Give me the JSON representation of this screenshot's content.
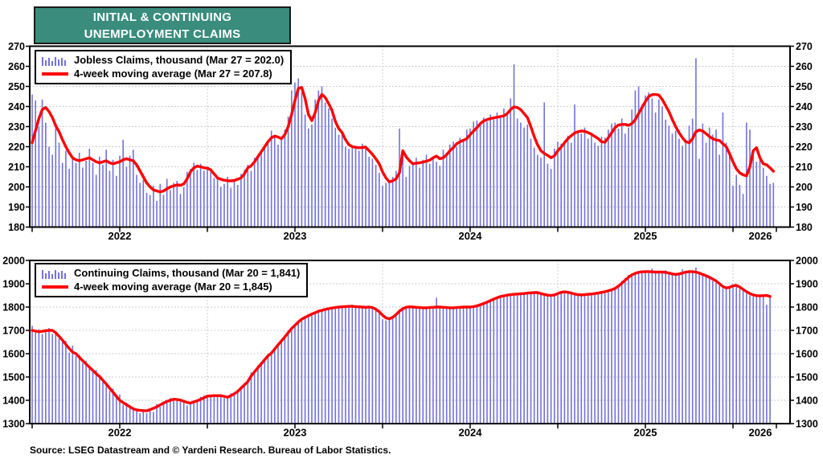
{
  "title": {
    "line1": "INITIAL & CONTINUING",
    "line2": "UNEMPLOYMENT CLAIMS"
  },
  "source_note": "Source: LSEG Datastream and © Yardeni Research. Bureau of Labor Statistics.",
  "colors": {
    "bars": "#7272D9",
    "line": "#FF0000",
    "title_bg": "#3A8C7D",
    "frame": "#000000",
    "grid": "#BBBBBB",
    "text": "#000000"
  },
  "chart_data": [
    {
      "id": "initial-claims",
      "type": "bar+line",
      "bar_series_label": "Jobless Claims, thousand (Mar 27 = 202.0)",
      "line_series_label": "4-week moving average (Mar 27 = 207.8)",
      "latest": {
        "date": "Mar 27",
        "bar_value": 202.0,
        "ma_value": 207.8
      },
      "legend_position": "top-left",
      "grid": true,
      "y_axis": {
        "min": 180,
        "max": 270,
        "step": 10,
        "y_tick_labels": [
          "180",
          "190",
          "200",
          "210",
          "220",
          "230",
          "240",
          "250",
          "260",
          "270"
        ]
      },
      "x_axis": {
        "start_year": 2022,
        "weeks": 221,
        "year_labels": [
          "2022",
          "2023",
          "2024",
          "2025",
          "2026"
        ]
      },
      "weekly_values": [
        246,
        243,
        230,
        243.5,
        232,
        220,
        216,
        231.5,
        222,
        212,
        218,
        209,
        214.5,
        212,
        217,
        209.5,
        213,
        219,
        212,
        206,
        215,
        211,
        218.5,
        208,
        213.5,
        205.5,
        215.5,
        223.5,
        210,
        215.5,
        218.5,
        206,
        202,
        203.5,
        197,
        196,
        200.5,
        193,
        201.5,
        196,
        204,
        198.5,
        202,
        203,
        196.5,
        200,
        207.5,
        209,
        212,
        208.5,
        211.5,
        208,
        210,
        207.5,
        204.5,
        204.5,
        200,
        201.5,
        205,
        199.5,
        203.5,
        201,
        206.5,
        208.5,
        211,
        208,
        214.5,
        215.5,
        217.5,
        221,
        222,
        228,
        226,
        221,
        224,
        228.5,
        235,
        248,
        252,
        254,
        247,
        236,
        229,
        231,
        243.5,
        248,
        250,
        242,
        239,
        234,
        229.5,
        226,
        228,
        220,
        219,
        219.5,
        220.5,
        218,
        221.5,
        220,
        215,
        214,
        211,
        207,
        200.5,
        202,
        202.5,
        205,
        208,
        229,
        216.5,
        205,
        210.5,
        211,
        214.5,
        209.5,
        213.5,
        216,
        211.5,
        214,
        212.5,
        210.5,
        218.5,
        217,
        221,
        222.5,
        220,
        224.5,
        223,
        228.5,
        229,
        232.5,
        233,
        231,
        234.5,
        232.5,
        236,
        233.5,
        237,
        235.5,
        239,
        237.5,
        244,
        261,
        234,
        232,
        229.5,
        231,
        224,
        219.5,
        216,
        214.5,
        242,
        211.5,
        209,
        219,
        222.5,
        221.5,
        223,
        225.5,
        222,
        241,
        228,
        226.5,
        229.5,
        224,
        226.5,
        222,
        220.5,
        225,
        224.5,
        228.5,
        231.5,
        232,
        229,
        234,
        226.5,
        229.5,
        238.5,
        248,
        250,
        241,
        245.5,
        247,
        244,
        237,
        243.5,
        240,
        233.5,
        230.5,
        226.5,
        228,
        224,
        220.5,
        222.5,
        230.5,
        234,
        264,
        214,
        231.5,
        222,
        229.5,
        226,
        228.5,
        216,
        237,
        222,
        216.5,
        200.5,
        206,
        201,
        196.5,
        232,
        228.5,
        218,
        212.5,
        213.5,
        209.5,
        205.5,
        201.5,
        202
      ],
      "moving_average": [
        222,
        228,
        234,
        238.5,
        239.5,
        237.5,
        234.5,
        230.5,
        227.5,
        223.5,
        220,
        217,
        214.5,
        213.5,
        213,
        213.5,
        214,
        214.5,
        213.5,
        212.5,
        212,
        212.5,
        213,
        212,
        211.5,
        212,
        212.5,
        213.5,
        214,
        213.5,
        213,
        211,
        208,
        205,
        202,
        200,
        198.5,
        198,
        197.5,
        198,
        199,
        200,
        200.5,
        201,
        200.8,
        201.5,
        204,
        207.5,
        209.5,
        210.3,
        210,
        209.5,
        209.3,
        208.5,
        206.5,
        204.5,
        203.8,
        203.3,
        203.1,
        203,
        203.2,
        203.8,
        204.5,
        206.5,
        209.5,
        210.5,
        212.5,
        215,
        217.5,
        220,
        222.5,
        224.5,
        225.3,
        224.8,
        224,
        226,
        230,
        236,
        243,
        249,
        249.5,
        244,
        236,
        233,
        237,
        243,
        246,
        244.5,
        241.5,
        238,
        232.5,
        229,
        227,
        223.5,
        221,
        220,
        219.7,
        219.5,
        219.6,
        219.8,
        218,
        216.2,
        214,
        211.5,
        207.5,
        204.5,
        202.5,
        203,
        204,
        207,
        218,
        215,
        213,
        211.5,
        211.8,
        212,
        212.3,
        212.8,
        213.3,
        214.5,
        215.3,
        214,
        214.5,
        216,
        218,
        219.5,
        221.5,
        222.5,
        223.2,
        224,
        226,
        227.8,
        229.5,
        231.5,
        232.8,
        233.5,
        234,
        234.3,
        234.7,
        235,
        235.3,
        236.5,
        238.5,
        239.8,
        239.5,
        238.5,
        236.5,
        234.5,
        230,
        225,
        221,
        218,
        216.7,
        215.7,
        214.5,
        215.5,
        218,
        219.8,
        222,
        224,
        225.5,
        226.8,
        227.5,
        227.8,
        227.7,
        227,
        226.2,
        225.1,
        224,
        222.5,
        222.2,
        224.5,
        227,
        229.5,
        230.8,
        231.1,
        231.1,
        230.6,
        231.5,
        233.5,
        236.5,
        239.5,
        242.5,
        245,
        245.9,
        246,
        245.7,
        243.5,
        240.5,
        237.5,
        233.5,
        230,
        227,
        224.5,
        222.5,
        222,
        224,
        227.5,
        228.3,
        227.8,
        226.5,
        225.1,
        224,
        223.3,
        223.1,
        221.5,
        220,
        216.5,
        212.5,
        209,
        207,
        206,
        205.5,
        210,
        218,
        219.5,
        214.5,
        211.5,
        211,
        209.5,
        207.8
      ]
    },
    {
      "id": "continuing-claims",
      "type": "bar+line",
      "bar_series_label": "Continuing Claims, thousand (Mar 20 = 1,841)",
      "line_series_label": "4-week moving average (Mar 20 = 1,845)",
      "latest": {
        "date": "Mar 20",
        "bar_value": 1841,
        "ma_value": 1845
      },
      "legend_position": "top-left",
      "grid": true,
      "y_axis": {
        "min": 1300,
        "max": 2000,
        "step": 100,
        "y_tick_labels": [
          "1300",
          "1400",
          "1500",
          "1600",
          "1700",
          "1800",
          "1900",
          "2000"
        ]
      },
      "x_axis": {
        "start_year": 2022,
        "weeks": 220,
        "year_labels": [
          "2022",
          "2023",
          "2024",
          "2025",
          "2026"
        ]
      },
      "weekly_values": [
        1720,
        1690,
        1705,
        1685,
        1700,
        1710,
        1685,
        1695,
        1665,
        1650,
        1655,
        1605,
        1635,
        1590,
        1595,
        1560,
        1570,
        1545,
        1520,
        1530,
        1495,
        1490,
        1475,
        1440,
        1450,
        1425,
        1425,
        1380,
        1390,
        1365,
        1370,
        1355,
        1345,
        1360,
        1345,
        1365,
        1350,
        1385,
        1372,
        1395,
        1400,
        1410,
        1402,
        1408,
        1395,
        1400,
        1378,
        1390,
        1400,
        1395,
        1415,
        1420,
        1422,
        1415,
        1425,
        1418,
        1422,
        1410,
        1412,
        1430,
        1432,
        1445,
        1460,
        1475,
        1490,
        1520,
        1530,
        1550,
        1565,
        1580,
        1598,
        1610,
        1628,
        1645,
        1660,
        1680,
        1700,
        1715,
        1728,
        1740,
        1752,
        1760,
        1768,
        1775,
        1780,
        1788,
        1790,
        1795,
        1797,
        1800,
        1800,
        1805,
        1803,
        1808,
        1805,
        1810,
        1806,
        1803,
        1800,
        1802,
        1798,
        1800,
        1788,
        1772,
        1748,
        1742,
        1755,
        1762,
        1775,
        1790,
        1800,
        1805,
        1798,
        1802,
        1795,
        1800,
        1793,
        1798,
        1800,
        1803,
        1840,
        1798,
        1795,
        1800,
        1795,
        1799,
        1802,
        1797,
        1801,
        1798,
        1800,
        1804,
        1808,
        1812,
        1818,
        1824,
        1830,
        1836,
        1842,
        1847,
        1850,
        1853,
        1855,
        1857,
        1858,
        1860,
        1860,
        1862,
        1858,
        1865,
        1860,
        1855,
        1850,
        1848,
        1852,
        1856,
        1862,
        1868,
        1863,
        1858,
        1855,
        1852,
        1850,
        1855,
        1856,
        1858,
        1855,
        1860,
        1862,
        1866,
        1870,
        1872,
        1876,
        1885,
        1898,
        1912,
        1925,
        1938,
        1945,
        1950,
        1952,
        1955,
        1950,
        1955,
        1965,
        1948,
        1952,
        1950,
        1958,
        1944,
        1940,
        1942,
        1945,
        1962,
        1950,
        1955,
        1948,
        1970,
        1942,
        1938,
        1930,
        1925,
        1912,
        1905,
        1892,
        1880,
        1885,
        1890,
        1895,
        1888,
        1878,
        1870,
        1858,
        1850,
        1846,
        1850,
        1852,
        1848,
        1810,
        1841
      ],
      "moving_average": [
        1700,
        1697,
        1694,
        1696,
        1699,
        1700,
        1700,
        1690,
        1675,
        1658,
        1640,
        1622,
        1607,
        1600,
        1585,
        1570,
        1556,
        1542,
        1528,
        1514,
        1502,
        1486,
        1470,
        1452,
        1435,
        1417,
        1400,
        1390,
        1381,
        1372,
        1363,
        1359,
        1357,
        1356,
        1355,
        1360,
        1366,
        1372,
        1380,
        1388,
        1395,
        1400,
        1405,
        1403,
        1401,
        1396,
        1391,
        1388,
        1393,
        1398,
        1404,
        1411,
        1418,
        1419,
        1420,
        1420,
        1420,
        1417,
        1413,
        1420,
        1428,
        1438,
        1452,
        1466,
        1480,
        1504,
        1522,
        1540,
        1557,
        1574,
        1591,
        1602,
        1620,
        1638,
        1655,
        1672,
        1690,
        1708,
        1722,
        1736,
        1748,
        1756,
        1763,
        1770,
        1776,
        1782,
        1786,
        1790,
        1793,
        1796,
        1798,
        1800,
        1801,
        1802,
        1803,
        1803,
        1802,
        1801,
        1800,
        1799,
        1800,
        1798,
        1791,
        1780,
        1765,
        1753,
        1750,
        1756,
        1768,
        1782,
        1793,
        1799,
        1801,
        1800,
        1799,
        1798,
        1797,
        1797,
        1798,
        1799,
        1800,
        1800,
        1799,
        1798,
        1797,
        1797,
        1798,
        1799,
        1800,
        1800,
        1800,
        1802,
        1805,
        1810,
        1815,
        1821,
        1828,
        1834,
        1840,
        1845,
        1848,
        1851,
        1853,
        1855,
        1856,
        1857,
        1858,
        1860,
        1861,
        1862,
        1862,
        1858,
        1854,
        1851,
        1850,
        1852,
        1858,
        1863,
        1865,
        1863,
        1860,
        1856,
        1853,
        1852,
        1853,
        1855,
        1856,
        1858,
        1860,
        1863,
        1866,
        1870,
        1874,
        1880,
        1890,
        1902,
        1915,
        1928,
        1938,
        1945,
        1949,
        1951,
        1952,
        1952,
        1951,
        1950,
        1950,
        1950,
        1949,
        1946,
        1942,
        1940,
        1942,
        1946,
        1950,
        1952,
        1952,
        1950,
        1946,
        1940,
        1934,
        1928,
        1920,
        1912,
        1900,
        1888,
        1882,
        1885,
        1891,
        1893,
        1886,
        1876,
        1866,
        1858,
        1852,
        1849,
        1848,
        1849,
        1850,
        1845
      ]
    }
  ]
}
